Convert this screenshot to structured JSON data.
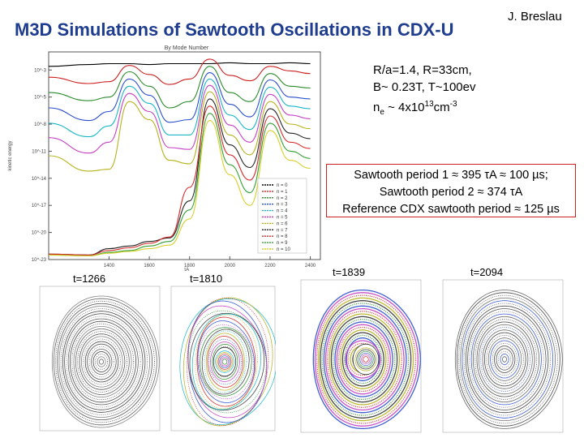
{
  "header": {
    "title": "M3D Simulations of Sawtooth Oscillations in CDX-U",
    "author": "J. Breslau"
  },
  "parameters": {
    "line1": "R/a=1.4, R=33cm,",
    "line2": "B~ 0.23T, T~100ev",
    "line3_prefix": "n",
    "line3_sub": "e",
    "line3_mid": " ~ 4x10",
    "line3_sup1": "13",
    "line3_unit": "cm",
    "line3_sup2": "-3"
  },
  "period_box": {
    "line1": "Sawtooth period 1 ≈ 395 τA ≈ 100 µs;",
    "line2": "Sawtooth period 2 ≈ 374 τA",
    "line3": "Reference CDX sawtooth period ≈ 125 µs"
  },
  "chart_data": {
    "type": "line",
    "title": "By Mode Number",
    "xlabel": "τA",
    "ylabel": "kinetic energy",
    "x": [
      1100,
      1300,
      1400,
      1500,
      1600,
      1700,
      1800,
      1900,
      2000,
      2100,
      2200,
      2300,
      2400
    ],
    "xlim": [
      1100,
      2450
    ],
    "x_tick_labels": [
      "1400",
      "1600",
      "1800",
      "2000",
      "2200",
      "2400"
    ],
    "y_tick_labels": [
      "10^-3",
      "10^-5",
      "10^-8",
      "10^-11",
      "10^-14",
      "10^-17",
      "10^-20",
      "10^-23"
    ],
    "ylim_log10": [
      -24,
      -1
    ],
    "legend": [
      "n = 0",
      "n = 1",
      "n = 2",
      "n = 3",
      "n = 4",
      "n = 5",
      "n = 6",
      "n = 7",
      "n = 8",
      "n = 9",
      "n = 10"
    ],
    "colors": [
      "#000000",
      "#cc2222",
      "#2a8a2a",
      "#2a4fcc",
      "#1ab6c8",
      "#c43fc4",
      "#b6b21c",
      "#222222",
      "#d42a2a",
      "#33a033",
      "#d8cf2a"
    ],
    "series": [
      {
        "name": "n = 0",
        "values": [
          -2.6,
          -2.4,
          -2.3,
          -2.3,
          -2.4,
          -2.3,
          -2.3,
          -2.3,
          -2.2,
          -2.3,
          -2.3,
          -2.2,
          -2.3
        ]
      },
      {
        "name": "n = 1",
        "values": [
          -3.8,
          -4.5,
          -4.3,
          -2.5,
          -3.5,
          -4.6,
          -4.0,
          -1.8,
          -3.6,
          -4.2,
          -2.6,
          -3.1,
          -3.4
        ]
      },
      {
        "name": "n = 2",
        "values": [
          -5.5,
          -6.4,
          -6.0,
          -3.2,
          -4.8,
          -7.2,
          -6.5,
          -2.6,
          -5.5,
          -6.5,
          -3.4,
          -4.8,
          -5.0
        ]
      },
      {
        "name": "n = 3",
        "values": [
          -7.2,
          -8.6,
          -7.6,
          -4.0,
          -5.8,
          -8.8,
          -8.5,
          -3.3,
          -6.8,
          -8.2,
          -4.1,
          -6.0,
          -6.2
        ]
      },
      {
        "name": "n = 4",
        "values": [
          -8.9,
          -10.4,
          -9.2,
          -4.8,
          -6.7,
          -10.2,
          -10.2,
          -4.0,
          -8.0,
          -9.6,
          -4.9,
          -7.0,
          -7.3
        ]
      },
      {
        "name": "n = 5",
        "values": [
          -10.5,
          -12.2,
          -11.0,
          -5.6,
          -7.6,
          -11.6,
          -11.8,
          -4.7,
          -9.1,
          -11.0,
          -5.7,
          -8.0,
          -8.4
        ]
      },
      {
        "name": "n = 6",
        "values": [
          -12.5,
          -14.2,
          -14.0,
          -6.5,
          -8.5,
          -13.0,
          -13.4,
          -5.4,
          -10.2,
          -12.4,
          -6.5,
          -9.0,
          -9.5
        ]
      },
      {
        "name": "n = 7",
        "values": [
          -23.4,
          -23.5,
          -22.8,
          -22.5,
          -22.0,
          -21.6,
          -17.5,
          -6.2,
          -11.3,
          -13.8,
          -7.3,
          -10.0,
          -10.6
        ]
      },
      {
        "name": "n = 8",
        "values": [
          -23.4,
          -23.5,
          -23.0,
          -22.7,
          -22.2,
          -21.5,
          -16.0,
          -7.0,
          -12.4,
          -15.2,
          -8.1,
          -11.0,
          -11.7
        ]
      },
      {
        "name": "n = 9",
        "values": [
          -23.5,
          -23.6,
          -23.2,
          -23.0,
          -22.5,
          -22.0,
          -18.5,
          -7.8,
          -13.5,
          -16.6,
          -8.9,
          -12.0,
          -12.8
        ]
      },
      {
        "name": "n = 10",
        "values": [
          -23.5,
          -23.6,
          -23.3,
          -23.1,
          -22.8,
          -22.4,
          -19.5,
          -8.6,
          -14.6,
          -18.0,
          -9.7,
          -13.0,
          -13.9
        ]
      }
    ]
  },
  "poincare": [
    {
      "label": "t=1266",
      "palette": [
        "#333333",
        "#555555",
        "#777777",
        "#444444"
      ]
    },
    {
      "label": "t=1810",
      "palette": [
        "#2a8a2a",
        "#c43fc4",
        "#2a4fcc",
        "#cc2222",
        "#b6b21c",
        "#1ab6c8",
        "#333333"
      ]
    },
    {
      "label": "t=1839",
      "palette": [
        "#cc2222",
        "#c43fc4",
        "#2a4fcc",
        "#2a8a2a",
        "#333333",
        "#b6b21c"
      ]
    },
    {
      "label": "t=2094",
      "palette": [
        "#333333",
        "#555555",
        "#2a4fcc",
        "#666666",
        "#444444"
      ]
    }
  ]
}
